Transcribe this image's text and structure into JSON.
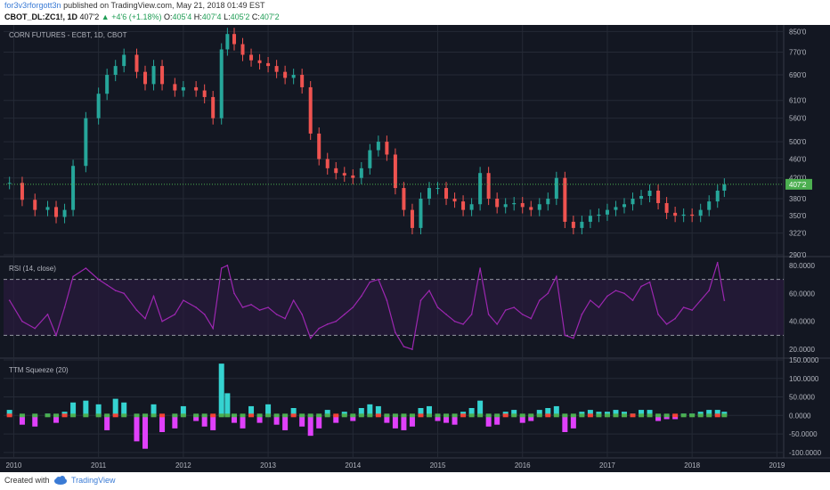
{
  "header": {
    "user": "for3v3rforgott3n",
    "published": "published on TradingView.com, May 21, 2018 01:49 EST",
    "symbol": "CBOT_DL:ZC1!, 1D",
    "price": "407'2",
    "change": "+4'6 (+1.18%)",
    "ohlc": {
      "O": "405'4",
      "H": "407'4",
      "L": "405'2",
      "C": "407'2"
    }
  },
  "footer": {
    "created_with": "Created with",
    "brand": "TradingView"
  },
  "colors": {
    "bg": "#131722",
    "grid": "#252a36",
    "text": "#b2b5be",
    "up": "#26a69a",
    "down": "#ef5350",
    "rsi": "#9c27b0",
    "rsi_band": "#2a1b3d",
    "sq_pos": "#35d3d1",
    "sq_neg": "#e040fb",
    "sq_dot_green": "#4caf50",
    "sq_dot_red": "#f44336",
    "last": "#4caf50"
  },
  "chart_data": [
    {
      "type": "candlestick",
      "title": "CORN FUTURES - ECBT, 1D, CBOT",
      "x_ticks": [
        "2010",
        "2011",
        "2012",
        "2013",
        "2014",
        "2015",
        "2016",
        "2017",
        "2018",
        "2019"
      ],
      "y_ticks": [
        "850'0",
        "770'0",
        "690'0",
        "610'0",
        "560'0",
        "500'0",
        "460'0",
        "420'0",
        "380'0",
        "350'0",
        "322'0",
        "290'0"
      ],
      "y_scale": "log",
      "ylim": [
        290,
        870
      ],
      "last_price_label": "407'2",
      "x": [
        2009.95,
        2010.1,
        2010.25,
        2010.4,
        2010.5,
        2010.6,
        2010.7,
        2010.85,
        2011.0,
        2011.1,
        2011.2,
        2011.3,
        2011.45,
        2011.55,
        2011.65,
        2011.75,
        2011.9,
        2012.0,
        2012.15,
        2012.25,
        2012.35,
        2012.45,
        2012.52,
        2012.6,
        2012.7,
        2012.8,
        2012.9,
        2013.0,
        2013.1,
        2013.2,
        2013.3,
        2013.4,
        2013.5,
        2013.6,
        2013.7,
        2013.8,
        2013.9,
        2014.0,
        2014.1,
        2014.2,
        2014.3,
        2014.4,
        2014.5,
        2014.6,
        2014.7,
        2014.8,
        2014.9,
        2015.0,
        2015.1,
        2015.2,
        2015.3,
        2015.4,
        2015.5,
        2015.6,
        2015.7,
        2015.8,
        2015.9,
        2016.0,
        2016.1,
        2016.2,
        2016.3,
        2016.4,
        2016.5,
        2016.6,
        2016.7,
        2016.8,
        2016.9,
        2017.0,
        2017.1,
        2017.2,
        2017.3,
        2017.4,
        2017.5,
        2017.6,
        2017.7,
        2017.8,
        2017.9,
        2018.0,
        2018.1,
        2018.2,
        2018.3,
        2018.38
      ],
      "close": [
        410,
        378,
        360,
        365,
        348,
        360,
        445,
        560,
        630,
        690,
        720,
        760,
        700,
        660,
        720,
        660,
        640,
        650,
        640,
        620,
        560,
        780,
        840,
        800,
        760,
        740,
        730,
        720,
        700,
        680,
        690,
        650,
        520,
        460,
        440,
        430,
        425,
        420,
        440,
        480,
        500,
        470,
        400,
        360,
        330,
        380,
        400,
        400,
        380,
        375,
        360,
        370,
        430,
        380,
        365,
        370,
        372,
        365,
        360,
        370,
        380,
        420,
        340,
        330,
        340,
        350,
        352,
        360,
        365,
        370,
        380,
        385,
        395,
        372,
        355,
        350,
        352,
        350,
        360,
        375,
        395,
        407
      ]
    },
    {
      "type": "line",
      "title": "RSI (14, close)",
      "x_ticks": [
        "2010",
        "2011",
        "2012",
        "2013",
        "2014",
        "2015",
        "2016",
        "2017",
        "2018",
        "2019"
      ],
      "y_ticks": [
        "80.0000",
        "60.0000",
        "40.0000",
        "20.0000"
      ],
      "ylim": [
        15,
        85
      ],
      "bands": [
        30,
        70
      ],
      "x": [
        2009.95,
        2010.1,
        2010.25,
        2010.4,
        2010.5,
        2010.6,
        2010.7,
        2010.85,
        2011.0,
        2011.1,
        2011.2,
        2011.3,
        2011.45,
        2011.55,
        2011.65,
        2011.75,
        2011.9,
        2012.0,
        2012.15,
        2012.25,
        2012.35,
        2012.45,
        2012.52,
        2012.6,
        2012.7,
        2012.8,
        2012.9,
        2013.0,
        2013.1,
        2013.2,
        2013.3,
        2013.4,
        2013.5,
        2013.6,
        2013.7,
        2013.8,
        2013.9,
        2014.0,
        2014.1,
        2014.2,
        2014.3,
        2014.4,
        2014.5,
        2014.6,
        2014.7,
        2014.8,
        2014.9,
        2015.0,
        2015.1,
        2015.2,
        2015.3,
        2015.4,
        2015.5,
        2015.6,
        2015.7,
        2015.8,
        2015.9,
        2016.0,
        2016.1,
        2016.2,
        2016.3,
        2016.4,
        2016.5,
        2016.6,
        2016.7,
        2016.8,
        2016.9,
        2017.0,
        2017.1,
        2017.2,
        2017.3,
        2017.4,
        2017.5,
        2017.6,
        2017.7,
        2017.8,
        2017.9,
        2018.0,
        2018.1,
        2018.2,
        2018.3,
        2018.38
      ],
      "values": [
        55,
        40,
        35,
        45,
        30,
        50,
        72,
        78,
        70,
        66,
        62,
        60,
        48,
        42,
        58,
        40,
        45,
        55,
        50,
        45,
        35,
        78,
        80,
        60,
        50,
        52,
        48,
        50,
        45,
        42,
        55,
        45,
        28,
        35,
        38,
        40,
        45,
        50,
        58,
        68,
        70,
        55,
        32,
        22,
        20,
        55,
        62,
        50,
        45,
        40,
        38,
        45,
        78,
        45,
        38,
        48,
        50,
        45,
        42,
        55,
        60,
        72,
        30,
        28,
        45,
        55,
        50,
        58,
        62,
        60,
        55,
        65,
        68,
        45,
        38,
        42,
        50,
        48,
        55,
        62,
        82,
        55
      ]
    },
    {
      "type": "bar",
      "title": "TTM Squeeze (20)",
      "x_ticks": [
        "2010",
        "2011",
        "2012",
        "2013",
        "2014",
        "2015",
        "2016",
        "2017",
        "2018",
        "2019"
      ],
      "y_ticks": [
        "150.0000",
        "100.0000",
        "50.0000",
        "0.0000",
        "-50.0000",
        "-100.0000"
      ],
      "ylim": [
        -110,
        150
      ],
      "x": [
        2009.95,
        2010.1,
        2010.25,
        2010.4,
        2010.5,
        2010.6,
        2010.7,
        2010.85,
        2011.0,
        2011.1,
        2011.2,
        2011.3,
        2011.45,
        2011.55,
        2011.65,
        2011.75,
        2011.9,
        2012.0,
        2012.15,
        2012.25,
        2012.35,
        2012.45,
        2012.52,
        2012.6,
        2012.7,
        2012.8,
        2012.9,
        2013.0,
        2013.1,
        2013.2,
        2013.3,
        2013.4,
        2013.5,
        2013.6,
        2013.7,
        2013.8,
        2013.9,
        2014.0,
        2014.1,
        2014.2,
        2014.3,
        2014.4,
        2014.5,
        2014.6,
        2014.7,
        2014.8,
        2014.9,
        2015.0,
        2015.1,
        2015.2,
        2015.3,
        2015.4,
        2015.5,
        2015.6,
        2015.7,
        2015.8,
        2015.9,
        2016.0,
        2016.1,
        2016.2,
        2016.3,
        2016.4,
        2016.5,
        2016.6,
        2016.7,
        2016.8,
        2016.9,
        2017.0,
        2017.1,
        2017.2,
        2017.3,
        2017.4,
        2017.5,
        2017.6,
        2017.7,
        2017.8,
        2017.9,
        2018.0,
        2018.1,
        2018.2,
        2018.3,
        2018.38
      ],
      "values": [
        15,
        -25,
        -30,
        5,
        -20,
        10,
        35,
        40,
        30,
        -40,
        45,
        35,
        -70,
        -90,
        30,
        -45,
        -35,
        25,
        -15,
        -30,
        -40,
        140,
        60,
        -20,
        -35,
        25,
        -20,
        30,
        -25,
        -40,
        20,
        -30,
        -55,
        -35,
        15,
        -20,
        10,
        -15,
        20,
        30,
        25,
        -20,
        -35,
        -40,
        -30,
        20,
        25,
        -15,
        -20,
        -25,
        10,
        20,
        40,
        -30,
        -25,
        10,
        15,
        -20,
        -15,
        15,
        20,
        25,
        -45,
        -35,
        10,
        15,
        10,
        10,
        15,
        10,
        5,
        15,
        15,
        -15,
        -10,
        -10,
        5,
        5,
        10,
        15,
        15,
        10
      ]
    }
  ]
}
